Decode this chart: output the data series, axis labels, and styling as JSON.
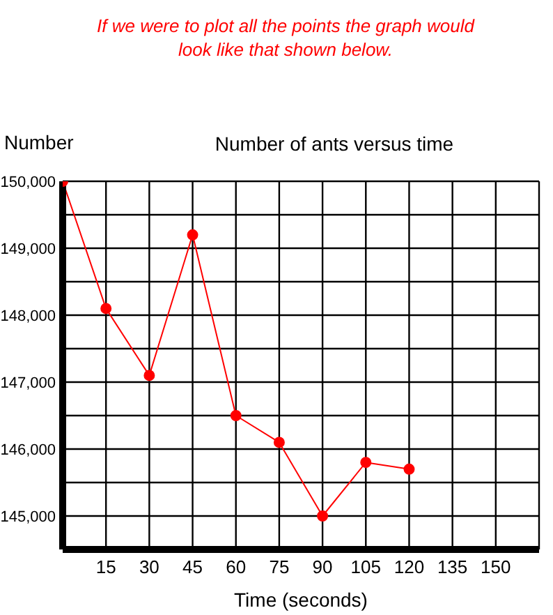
{
  "chart_data": {
    "type": "line",
    "title": "Number of ants versus time",
    "xlabel": "Time (seconds)",
    "ylabel": "Number",
    "annotations": [
      "If we were to plot all the points the graph would look like that shown below."
    ],
    "x": [
      0,
      15,
      30,
      45,
      60,
      75,
      90,
      105,
      120
    ],
    "series": [
      {
        "color": "#ff0000",
        "values": [
          150000,
          148100,
          147100,
          149200,
          146500,
          146100,
          145000,
          145800,
          145700
        ]
      }
    ],
    "xlim": [
      0,
      165
    ],
    "xticks": [
      {
        "value": 0,
        "label": null
      },
      15,
      30,
      45,
      60,
      75,
      90,
      105,
      120,
      135,
      150,
      {
        "value": 165,
        "label": null
      }
    ],
    "ylim": [
      144500,
      150000
    ],
    "yticks": [
      {
        "value": 145000,
        "label": "145,000"
      },
      {
        "value": 145500,
        "label": null
      },
      {
        "value": 146000,
        "label": "146,000"
      },
      {
        "value": 146500,
        "label": null
      },
      {
        "value": 147000,
        "label": "147,000"
      },
      {
        "value": 147500,
        "label": null
      },
      {
        "value": 148000,
        "label": "148,000"
      },
      {
        "value": 148500,
        "label": null
      },
      {
        "value": 149000,
        "label": "149,000"
      },
      {
        "value": 149500,
        "label": null
      },
      {
        "value": 150000,
        "label": "150,000"
      }
    ],
    "grid": true,
    "marker": "circle",
    "line_style": "solid",
    "legend": false
  }
}
